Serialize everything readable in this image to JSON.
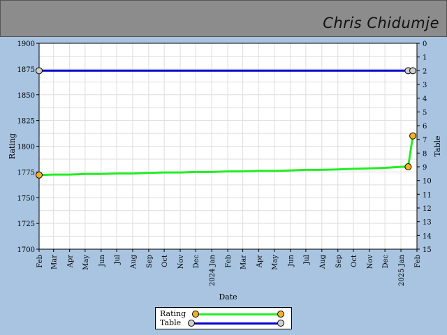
{
  "header": {
    "player_name": "Chris Chidumje"
  },
  "chart_data": {
    "type": "line",
    "xlabel": "Date",
    "ylabel": "Rating",
    "y2label": "Table",
    "ylim": [
      1700,
      1900
    ],
    "y2lim": [
      0,
      15
    ],
    "y2_inverted": true,
    "y_ticks": [
      1700,
      1725,
      1750,
      1775,
      1800,
      1825,
      1850,
      1875,
      1900
    ],
    "y2_ticks": [
      0,
      1,
      2,
      3,
      4,
      5,
      6,
      7,
      8,
      9,
      10,
      11,
      12,
      13,
      14,
      15
    ],
    "x_ticks": [
      "Feb",
      "Mar",
      "Apr",
      "May",
      "Jun",
      "Jul",
      "Aug",
      "Sep",
      "Oct",
      "Nov",
      "Dec",
      "2024 Jan",
      "Feb",
      "Mar",
      "Apr",
      "May",
      "Jun",
      "Jul",
      "Aug",
      "Sep",
      "Oct",
      "Nov",
      "Dec",
      "2025 Jan",
      "Feb"
    ],
    "xlim": [
      "2023-02-01",
      "2025-02-01"
    ],
    "grid": true,
    "legend_position": "bottom",
    "series": [
      {
        "name": "Rating",
        "axis": "left",
        "color": "#22ee22",
        "marker_color": "#f5b021",
        "points": [
          {
            "x": "2023-02-01",
            "y": 1772
          },
          {
            "x": "2023-03-01",
            "y": 1772.5
          },
          {
            "x": "2023-04-01",
            "y": 1772.5
          },
          {
            "x": "2023-05-01",
            "y": 1773
          },
          {
            "x": "2023-06-01",
            "y": 1773
          },
          {
            "x": "2023-07-01",
            "y": 1773.5
          },
          {
            "x": "2023-08-01",
            "y": 1773.5
          },
          {
            "x": "2023-09-01",
            "y": 1774
          },
          {
            "x": "2023-10-01",
            "y": 1774.5
          },
          {
            "x": "2023-11-01",
            "y": 1774.5
          },
          {
            "x": "2023-12-01",
            "y": 1775
          },
          {
            "x": "2024-01-01",
            "y": 1775
          },
          {
            "x": "2024-02-01",
            "y": 1775.5
          },
          {
            "x": "2024-03-01",
            "y": 1775.5
          },
          {
            "x": "2024-04-01",
            "y": 1776
          },
          {
            "x": "2024-05-01",
            "y": 1776
          },
          {
            "x": "2024-06-01",
            "y": 1776.5
          },
          {
            "x": "2024-07-01",
            "y": 1777
          },
          {
            "x": "2024-08-01",
            "y": 1777
          },
          {
            "x": "2024-09-01",
            "y": 1777.5
          },
          {
            "x": "2024-10-01",
            "y": 1778
          },
          {
            "x": "2024-11-01",
            "y": 1778.5
          },
          {
            "x": "2024-12-01",
            "y": 1779
          },
          {
            "x": "2025-01-03",
            "y": 1780
          },
          {
            "x": "2025-01-15",
            "y": 1780
          },
          {
            "x": "2025-01-24",
            "y": 1810
          }
        ],
        "markers": [
          0,
          24,
          25
        ]
      },
      {
        "name": "Table",
        "axis": "right",
        "color": "#0000cc",
        "marker_color": "#d0d0d0",
        "points": [
          {
            "x": "2023-02-01",
            "y": 2
          },
          {
            "x": "2025-01-15",
            "y": 2
          },
          {
            "x": "2025-01-24",
            "y": 2
          }
        ],
        "markers": [
          0,
          1,
          2
        ]
      }
    ]
  }
}
